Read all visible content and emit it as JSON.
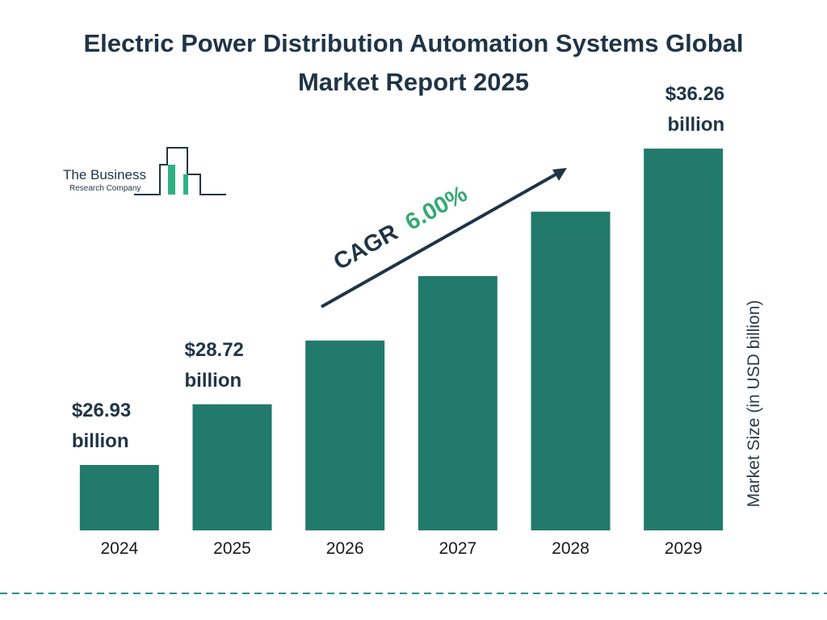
{
  "chart_data": {
    "type": "bar",
    "title": "Electric Power Distribution Automation Systems Global Market Report 2025",
    "categories": [
      "2024",
      "2025",
      "2026",
      "2027",
      "2028",
      "2029"
    ],
    "values": [
      26.93,
      28.72,
      30.6,
      32.5,
      34.4,
      36.26
    ],
    "value_labels": [
      "$26.93 billion",
      "$28.72 billion",
      null,
      null,
      null,
      "$36.26 billion"
    ],
    "color": "#217a6b",
    "ylim": [
      25,
      36.5
    ],
    "y_label": "Market Size (in USD billion)",
    "annotation": {
      "label": "CAGR",
      "value": "6.00%"
    },
    "logo": {
      "line1": "The Business",
      "line2": "Research Company"
    }
  }
}
